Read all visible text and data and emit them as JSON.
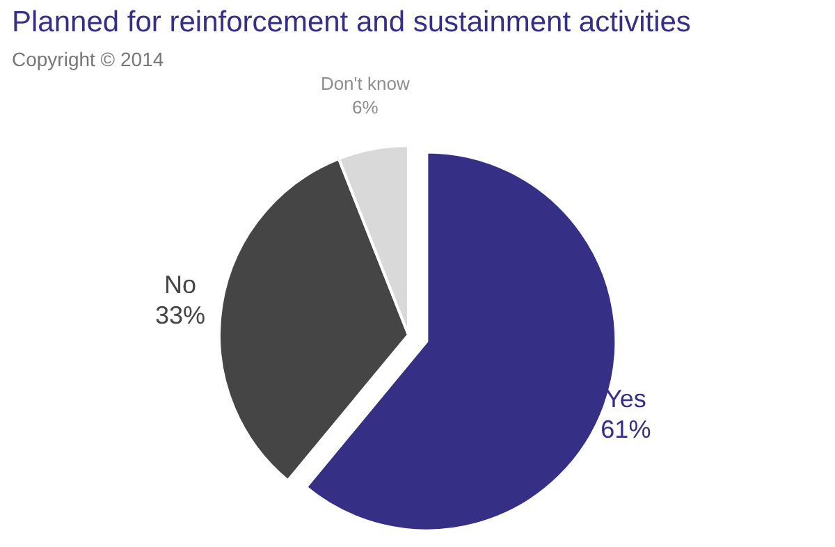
{
  "chart_data": {
    "type": "pie",
    "title": "Planned for reinforcement and sustainment activities",
    "subtitle": "Copyright © 2014",
    "categories": [
      "Yes",
      "No",
      "Don't know"
    ],
    "values": [
      61,
      33,
      6
    ],
    "value_labels": [
      "61%",
      "33%",
      "6%"
    ],
    "colors": [
      "#352f85",
      "#454545",
      "#d9d9d9"
    ]
  }
}
